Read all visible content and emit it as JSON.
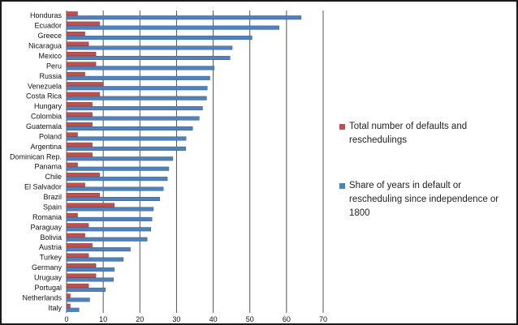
{
  "chart_data": {
    "type": "bar",
    "orientation": "horizontal",
    "title": "",
    "xlabel": "",
    "ylabel": "",
    "xlim": [
      0,
      70
    ],
    "x_ticks": [
      0,
      10,
      20,
      30,
      40,
      50,
      60,
      70
    ],
    "grid": "vertical",
    "legend_position": "right",
    "categories": [
      "Honduras",
      "Ecuador",
      "Greece",
      "Nicaragua",
      "Mexico",
      "Peru",
      "Russia",
      "Venezuela",
      "Costa Rica",
      "Hungary",
      "Colombia",
      "Guatemala",
      "Poland",
      "Argentina",
      "Dominican Rep.",
      "Panama",
      "Chile",
      "El Salvador",
      "Brazil",
      "Spain",
      "Romania",
      "Paraguay",
      "Bolivia",
      "Austria",
      "Turkey",
      "Germany",
      "Uruguay",
      "Portugal",
      "Netherlands",
      "Italy"
    ],
    "series": [
      {
        "name": "Total number of defaults and reschedulings",
        "color": "#c0504d",
        "values": [
          3,
          9,
          5,
          6,
          8,
          8,
          5,
          10,
          9,
          7,
          7,
          7,
          3,
          7,
          7,
          3,
          9,
          5,
          9,
          13,
          3,
          6,
          5,
          7,
          6,
          8,
          8,
          6,
          1,
          1
        ]
      },
      {
        "name": "Share of years in default or rescheduling since independence or 1800",
        "color": "#4f81bd",
        "values": [
          64,
          58,
          50.6,
          45.2,
          44.6,
          40.3,
          39.1,
          38.4,
          38.2,
          37.1,
          36.2,
          34.4,
          32.6,
          32.5,
          29,
          27.9,
          27.5,
          26.4,
          25.4,
          23.7,
          23.3,
          23,
          22,
          17.4,
          15.5,
          13,
          12.8,
          10.6,
          6.3,
          3.4
        ]
      }
    ]
  }
}
